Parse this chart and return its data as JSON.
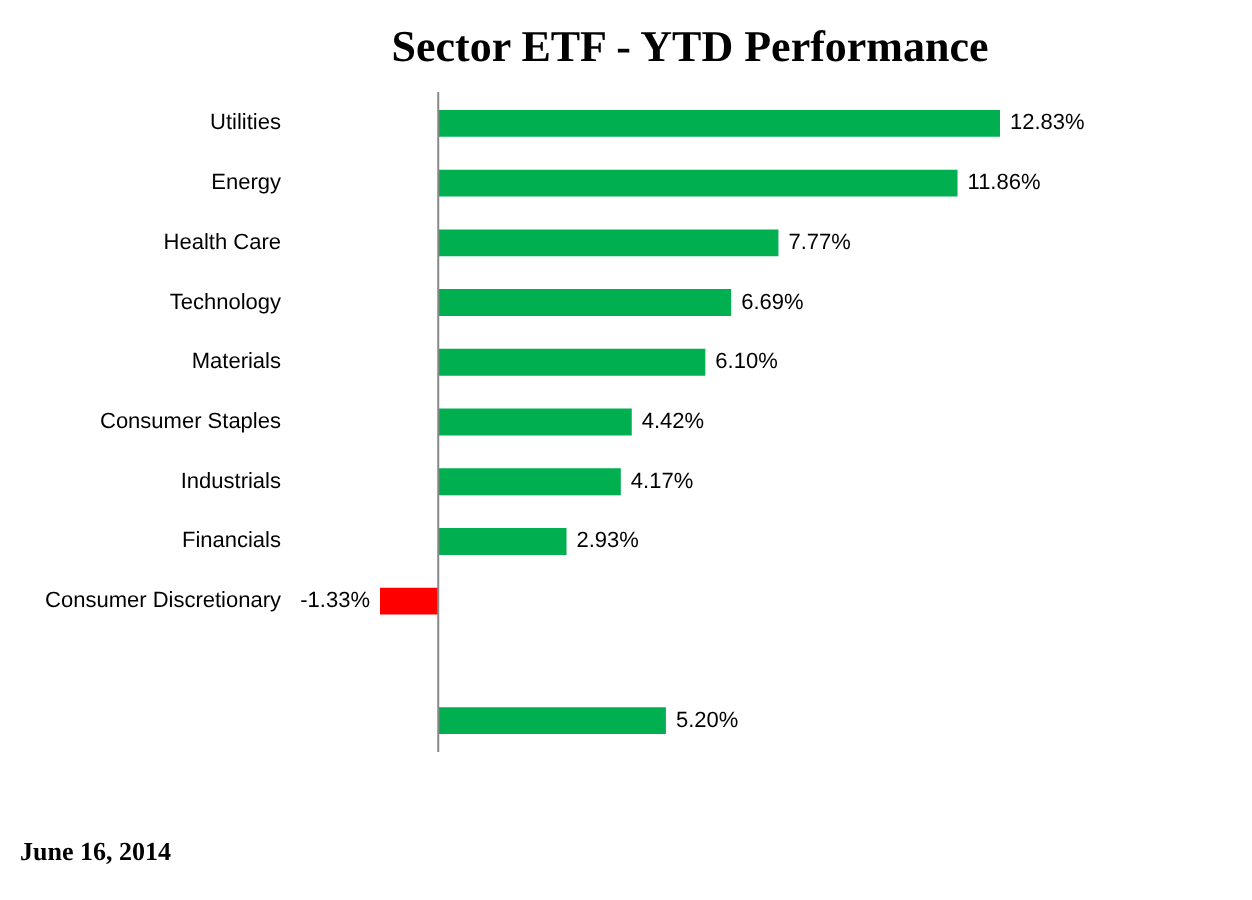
{
  "chart_data": {
    "type": "bar",
    "orientation": "horizontal",
    "title": "Sector ETF - YTD  Performance",
    "categories": [
      "Utilities",
      "Energy",
      "Health Care",
      "Technology",
      "Materials",
      "Consumer Staples",
      "Industrials",
      "Financials",
      "Consumer Discretionary",
      null,
      null
    ],
    "values": [
      12.83,
      11.86,
      7.77,
      6.69,
      6.1,
      4.42,
      4.17,
      2.93,
      -1.33,
      null,
      5.2
    ],
    "colors": [
      "#00b050",
      "#00b050",
      "#00b050",
      "#00b050",
      "#00b050",
      "#00b050",
      "#00b050",
      "#00b050",
      "#ff0000",
      "#00b050",
      "#00b050"
    ],
    "value_labels": [
      "12.83%",
      "11.86%",
      "7.77%",
      "6.69%",
      "6.10%",
      "4.42%",
      "4.17%",
      "2.93%",
      "-1.33%",
      null,
      "5.20%"
    ],
    "tick_labels": "y",
    "grid": false,
    "annotations": [
      "June 16, 2014"
    ]
  }
}
